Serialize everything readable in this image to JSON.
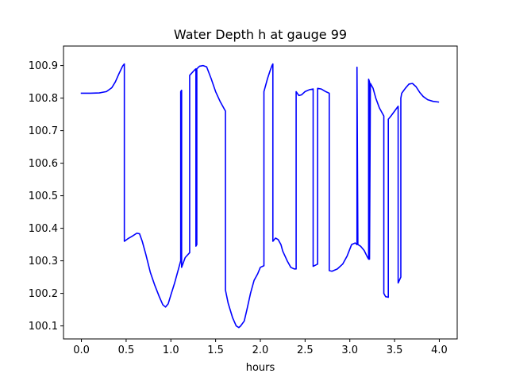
{
  "chart_data": {
    "type": "line",
    "title": "Water Depth h at gauge 99",
    "xlabel": "hours",
    "ylabel": "",
    "xlim": [
      -0.2,
      4.2
    ],
    "ylim": [
      100.06,
      100.96
    ],
    "xticks": [
      {
        "value": 0.0,
        "label": "0.0"
      },
      {
        "value": 0.5,
        "label": "0.5"
      },
      {
        "value": 1.0,
        "label": "1.0"
      },
      {
        "value": 1.5,
        "label": "1.5"
      },
      {
        "value": 2.0,
        "label": "2.0"
      },
      {
        "value": 2.5,
        "label": "2.5"
      },
      {
        "value": 3.0,
        "label": "3.0"
      },
      {
        "value": 3.5,
        "label": "3.5"
      },
      {
        "value": 4.0,
        "label": "4.0"
      }
    ],
    "yticks": [
      {
        "value": 100.1,
        "label": "100.1"
      },
      {
        "value": 100.2,
        "label": "100.2"
      },
      {
        "value": 100.3,
        "label": "100.3"
      },
      {
        "value": 100.4,
        "label": "100.4"
      },
      {
        "value": 100.5,
        "label": "100.5"
      },
      {
        "value": 100.6,
        "label": "100.6"
      },
      {
        "value": 100.7,
        "label": "100.7"
      },
      {
        "value": 100.8,
        "label": "100.8"
      },
      {
        "value": 100.9,
        "label": "100.9"
      }
    ],
    "grid": false,
    "series": [
      {
        "color": "#0000ff",
        "x": [
          0.0,
          0.1,
          0.2,
          0.28,
          0.34,
          0.38,
          0.42,
          0.46,
          0.48,
          0.48,
          0.52,
          0.57,
          0.62,
          0.65,
          0.68,
          0.72,
          0.77,
          0.82,
          0.87,
          0.91,
          0.94,
          0.97,
          1.0,
          1.04,
          1.08,
          1.11,
          1.11,
          1.12,
          1.12,
          1.16,
          1.21,
          1.21,
          1.26,
          1.28,
          1.28,
          1.29,
          1.29,
          1.32,
          1.36,
          1.4,
          1.45,
          1.5,
          1.55,
          1.61,
          1.61,
          1.64,
          1.69,
          1.73,
          1.76,
          1.78,
          1.82,
          1.85,
          1.89,
          1.93,
          1.97,
          2.0,
          2.04,
          2.04,
          2.08,
          2.11,
          2.13,
          2.14,
          2.14,
          2.17,
          2.2,
          2.23,
          2.25,
          2.3,
          2.34,
          2.38,
          2.4,
          2.4,
          2.43,
          2.46,
          2.5,
          2.55,
          2.59,
          2.59,
          2.64,
          2.64,
          2.68,
          2.73,
          2.77,
          2.77,
          2.8,
          2.86,
          2.92,
          2.97,
          3.02,
          3.06,
          3.08,
          3.08,
          3.09,
          3.12,
          3.16,
          3.19,
          3.21,
          3.21,
          3.22,
          3.22,
          3.23,
          3.26,
          3.29,
          3.33,
          3.38,
          3.38,
          3.4,
          3.43,
          3.43,
          3.46,
          3.5,
          3.54,
          3.54,
          3.57,
          3.57,
          3.58,
          3.62,
          3.66,
          3.7,
          3.74,
          3.78,
          3.82,
          3.87,
          3.93,
          3.99
        ],
        "y": [
          100.815,
          100.815,
          100.816,
          100.82,
          100.832,
          100.85,
          100.875,
          100.898,
          100.905,
          100.36,
          100.368,
          100.376,
          100.385,
          100.383,
          100.36,
          100.32,
          100.265,
          100.225,
          100.19,
          100.165,
          100.158,
          100.168,
          100.195,
          100.23,
          100.27,
          100.3,
          100.82,
          100.824,
          100.28,
          100.31,
          100.325,
          100.87,
          100.885,
          100.89,
          100.345,
          100.35,
          100.89,
          100.898,
          100.9,
          100.896,
          100.86,
          100.82,
          100.79,
          100.76,
          100.21,
          100.17,
          100.125,
          100.1,
          100.095,
          100.1,
          100.115,
          100.15,
          100.2,
          100.24,
          100.26,
          100.28,
          100.285,
          100.82,
          100.86,
          100.885,
          100.9,
          100.905,
          100.36,
          100.37,
          100.365,
          100.35,
          100.33,
          100.3,
          100.28,
          100.275,
          100.275,
          100.82,
          100.808,
          100.81,
          100.82,
          100.826,
          100.828,
          100.283,
          100.29,
          100.83,
          100.828,
          100.82,
          100.815,
          100.27,
          100.268,
          100.275,
          100.29,
          100.315,
          100.35,
          100.355,
          100.35,
          100.895,
          100.35,
          100.345,
          100.332,
          100.315,
          100.305,
          100.858,
          100.85,
          100.305,
          100.845,
          100.83,
          100.8,
          100.77,
          100.745,
          100.2,
          100.19,
          100.188,
          100.735,
          100.745,
          100.76,
          100.775,
          100.232,
          100.25,
          100.8,
          100.815,
          100.83,
          100.843,
          100.845,
          100.835,
          100.818,
          100.805,
          100.795,
          100.79,
          100.788
        ]
      }
    ]
  }
}
